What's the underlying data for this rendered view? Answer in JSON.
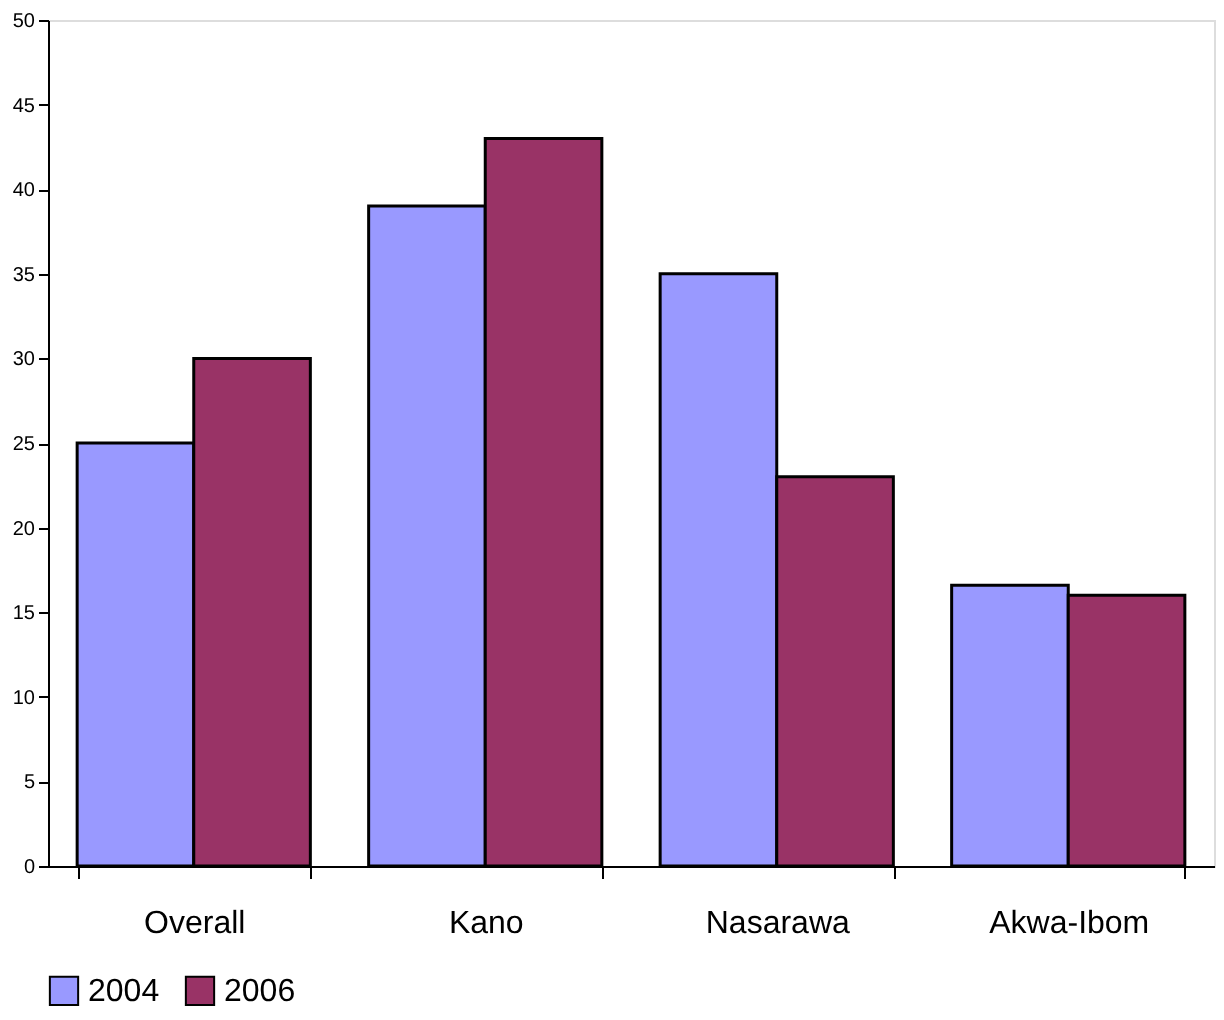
{
  "chart_data": {
    "type": "bar",
    "categories": [
      "Overall",
      "Kano",
      "Nasarawa",
      "Akwa-Ibom"
    ],
    "series": [
      {
        "name": "2004",
        "color": "#9999ff",
        "values": [
          25,
          39,
          35,
          16.6
        ]
      },
      {
        "name": "2006",
        "color": "#993366",
        "values": [
          30,
          43,
          23,
          16
        ]
      }
    ],
    "ylim": [
      0,
      50
    ],
    "yticks": [
      0,
      5,
      10,
      15,
      20,
      25,
      30,
      35,
      40,
      45,
      50
    ],
    "grid": false,
    "legend": "bottom"
  }
}
